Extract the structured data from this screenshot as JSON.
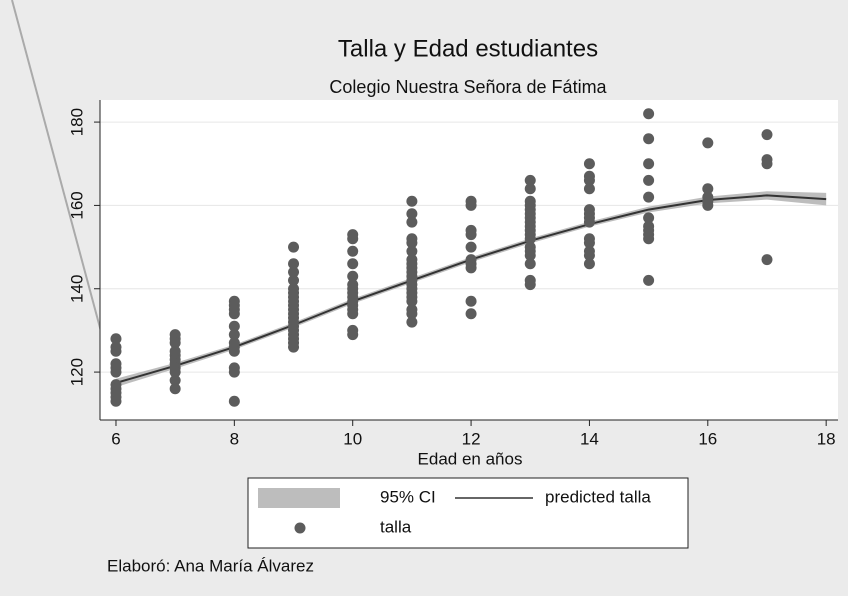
{
  "chart_data": {
    "type": "scatter",
    "title": "Talla y Edad estudiantes",
    "subtitle": "Colegio Nuestra Señora de Fátima",
    "x_label": "Edad en años",
    "note": "Elaboró: Ana María Álvarez",
    "xlim": [
      5.73,
      18.2
    ],
    "xticks": [
      6,
      8,
      10,
      12,
      14,
      16,
      18
    ],
    "ylim": [
      108.5,
      185.3
    ],
    "yticks": [
      120,
      140,
      160,
      180
    ],
    "grid": true,
    "series": [
      {
        "name": "95% CI",
        "type": "area",
        "color": "#bdbdbd",
        "x": [
          6,
          7,
          8,
          9,
          10,
          11,
          12,
          13,
          14,
          15,
          16,
          17,
          18
        ],
        "upper": [
          118.4,
          122.2,
          126.6,
          131.9,
          137.6,
          142.6,
          147.6,
          152.1,
          156.1,
          159.7,
          162.1,
          163.4,
          163
        ],
        "lower": [
          116.4,
          120.8,
          125.4,
          130.7,
          136.4,
          141.4,
          146.4,
          150.9,
          154.9,
          158.3,
          160.5,
          161.4,
          160
        ]
      },
      {
        "name": "predicted talla",
        "type": "line",
        "color": "#333333",
        "x": [
          6,
          7,
          8,
          9,
          10,
          11,
          12,
          13,
          14,
          15,
          16,
          17,
          18
        ],
        "values": [
          117.4,
          121.5,
          126,
          131.3,
          137,
          142,
          147,
          151.5,
          155.5,
          159,
          161.3,
          162.4,
          161.5
        ]
      },
      {
        "name": "talla",
        "type": "scatter",
        "color": "#5c5c5c",
        "x": [
          6,
          6,
          6,
          6,
          6,
          6,
          6,
          6,
          6,
          6,
          6,
          7,
          7,
          7,
          7,
          7,
          7,
          7,
          7,
          7,
          7,
          7,
          8,
          8,
          8,
          8,
          8,
          8,
          8,
          8,
          8,
          8,
          8,
          8,
          9,
          9,
          9,
          9,
          9,
          9,
          9,
          9,
          9,
          9,
          9,
          9,
          9,
          9,
          9,
          9,
          9,
          9,
          9,
          10,
          10,
          10,
          10,
          10,
          10,
          10,
          10,
          10,
          10,
          10,
          10,
          10,
          10,
          10,
          11,
          11,
          11,
          11,
          11,
          11,
          11,
          11,
          11,
          11,
          11,
          11,
          11,
          11,
          11,
          11,
          11,
          11,
          11,
          11,
          12,
          12,
          12,
          12,
          12,
          12,
          12,
          12,
          12,
          12,
          13,
          13,
          13,
          13,
          13,
          13,
          13,
          13,
          13,
          13,
          13,
          13,
          13,
          13,
          13,
          13,
          13,
          13,
          14,
          14,
          14,
          14,
          14,
          14,
          14,
          14,
          14,
          14,
          14,
          14,
          14,
          15,
          15,
          15,
          15,
          15,
          15,
          15,
          15,
          15,
          15,
          15,
          16,
          16,
          16,
          16,
          16,
          17,
          17,
          17,
          17
        ],
        "values": [
          128,
          126,
          125,
          122,
          121,
          120,
          117,
          116,
          115,
          114,
          113,
          129,
          128,
          127,
          125,
          124,
          123,
          122,
          121,
          120,
          118,
          116,
          137,
          136,
          135,
          134,
          131,
          129,
          127,
          126,
          125,
          121,
          120,
          113,
          150,
          146,
          144,
          142,
          140,
          139,
          138,
          137,
          136,
          135,
          134,
          133,
          132,
          131,
          130,
          129,
          128,
          127,
          126,
          153,
          152,
          149,
          146,
          143,
          141,
          140,
          139,
          138,
          137,
          136,
          135,
          134,
          130,
          129,
          161,
          158,
          156,
          152,
          151,
          149,
          147,
          146,
          145,
          144,
          143,
          142,
          141,
          140,
          139,
          138,
          137,
          135,
          134,
          132,
          161,
          160,
          154,
          153,
          150,
          147,
          146,
          145,
          137,
          134,
          166,
          164,
          161,
          160,
          159,
          158,
          157,
          156,
          155,
          154,
          153,
          152,
          150,
          149,
          148,
          146,
          142,
          141,
          170,
          167,
          166,
          164,
          159,
          158,
          157,
          156,
          152,
          151,
          149,
          148,
          146,
          182,
          176,
          170,
          166,
          162,
          157,
          155,
          154,
          153,
          152,
          142,
          175,
          164,
          162,
          161,
          160,
          177,
          171,
          170,
          147
        ]
      }
    ]
  }
}
